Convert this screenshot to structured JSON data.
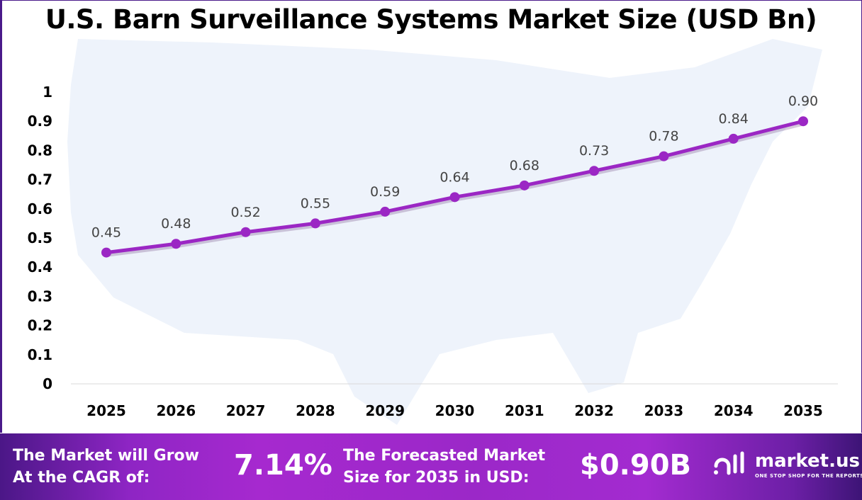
{
  "chart_data": {
    "type": "line",
    "title": "U.S. Barn Surveillance Systems Market Size (USD Bn)",
    "categories": [
      "2025",
      "2026",
      "2027",
      "2028",
      "2029",
      "2030",
      "2031",
      "2032",
      "2033",
      "2034",
      "2035"
    ],
    "values": [
      0.45,
      0.48,
      0.52,
      0.55,
      0.59,
      0.64,
      0.68,
      0.73,
      0.78,
      0.84,
      0.9
    ],
    "data_labels": [
      "0.45",
      "0.48",
      "0.52",
      "0.55",
      "0.59",
      "0.64",
      "0.68",
      "0.73",
      "0.78",
      "0.84",
      "0.90"
    ],
    "yticks": [
      "0",
      "0.1",
      "0.2",
      "0.3",
      "0.4",
      "0.5",
      "0.6",
      "0.7",
      "0.8",
      "0.9",
      "1"
    ],
    "ylim": [
      0,
      1
    ],
    "xlabel": "",
    "ylabel": "",
    "grid": false,
    "line_color": "#9b27c4",
    "background": "U.S. map silhouette"
  },
  "footer": {
    "cagr_label_line1": "The Market will Grow",
    "cagr_label_line2": "At the CAGR of:",
    "cagr_value": "7.14%",
    "forecast_label_line1": "The Forecasted Market",
    "forecast_label_line2": "Size for 2035 in USD:",
    "forecast_value": "$0.90B",
    "logo_text": "market.us",
    "logo_tagline": "ONE STOP SHOP FOR THE REPORTS"
  }
}
